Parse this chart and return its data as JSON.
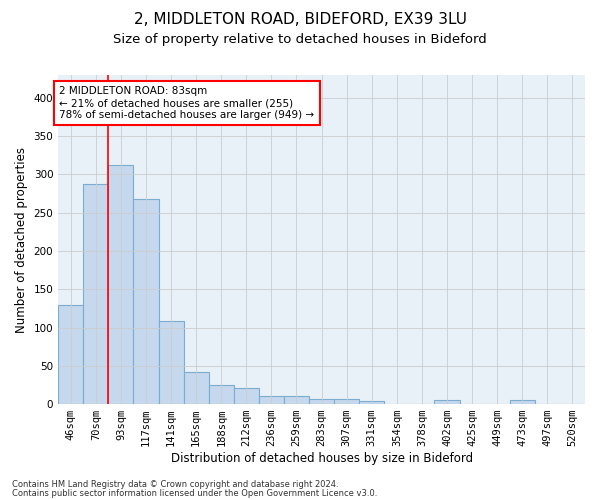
{
  "title_line1": "2, MIDDLETON ROAD, BIDEFORD, EX39 3LU",
  "title_line2": "Size of property relative to detached houses in Bideford",
  "xlabel": "Distribution of detached houses by size in Bideford",
  "ylabel": "Number of detached properties",
  "categories": [
    "46sqm",
    "70sqm",
    "93sqm",
    "117sqm",
    "141sqm",
    "165sqm",
    "188sqm",
    "212sqm",
    "236sqm",
    "259sqm",
    "283sqm",
    "307sqm",
    "331sqm",
    "354sqm",
    "378sqm",
    "402sqm",
    "425sqm",
    "449sqm",
    "473sqm",
    "497sqm",
    "520sqm"
  ],
  "values": [
    130,
    288,
    313,
    268,
    108,
    42,
    25,
    21,
    10,
    10,
    7,
    7,
    4,
    0,
    0,
    5,
    0,
    0,
    5,
    0,
    0
  ],
  "bar_color": "#c5d8ed",
  "bar_edge_color": "#7aadcf",
  "bar_linewidth": 0.8,
  "red_line_x": 1.5,
  "annotation_text": "2 MIDDLETON ROAD: 83sqm\n← 21% of detached houses are smaller (255)\n78% of semi-detached houses are larger (949) →",
  "annotation_box_color": "white",
  "annotation_box_edge": "red",
  "ylim": [
    0,
    430
  ],
  "yticks": [
    0,
    50,
    100,
    150,
    200,
    250,
    300,
    350,
    400
  ],
  "grid_color": "#cccccc",
  "bg_color": "#e8f0f8",
  "footnote1": "Contains HM Land Registry data © Crown copyright and database right 2024.",
  "footnote2": "Contains public sector information licensed under the Open Government Licence v3.0.",
  "title_fontsize": 11,
  "subtitle_fontsize": 9.5,
  "tick_fontsize": 7.5,
  "ylabel_fontsize": 8.5,
  "xlabel_fontsize": 8.5,
  "annot_fontsize": 7.5,
  "footnote_fontsize": 6.0
}
